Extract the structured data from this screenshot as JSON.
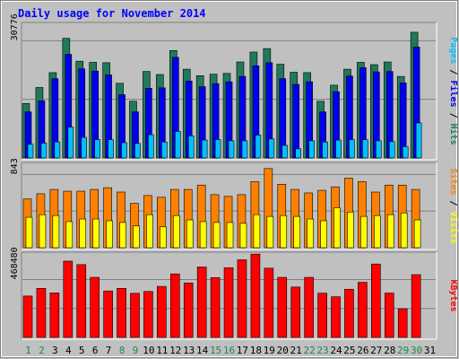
{
  "chart_data": {
    "type": "bar",
    "title": "Daily usage for November 2014",
    "colors": {
      "background": "#c0c0c0",
      "title": "#0000ff",
      "hits": "#1f7a5a",
      "files": "#0000ee",
      "pages": "#00c0ff",
      "visits": "#ffff00",
      "sites": "#ff8000",
      "kbytes": "#ff0000",
      "weekday_label": "#000000",
      "weekend_label": "#1a8a4a"
    },
    "days": [
      "1",
      "2",
      "3",
      "4",
      "5",
      "6",
      "7",
      "8",
      "9",
      "10",
      "11",
      "12",
      "13",
      "14",
      "15",
      "16",
      "17",
      "18",
      "19",
      "20",
      "21",
      "22",
      "23",
      "24",
      "25",
      "26",
      "27",
      "28",
      "29",
      "30",
      "31"
    ],
    "weekend_days": [
      "1",
      "2",
      "8",
      "9",
      "15",
      "16",
      "22",
      "23",
      "29",
      "30"
    ],
    "panels": [
      {
        "id": "hits",
        "ylabel_parts": [
          {
            "text": "Pages",
            "color": "#00c0ff"
          },
          {
            "text": " / ",
            "color": "#000000"
          },
          {
            "text": "Files",
            "color": "#0000ee"
          },
          {
            "text": " / ",
            "color": "#000000"
          },
          {
            "text": "Hits",
            "color": "#1f7a5a"
          }
        ],
        "ytick_label": "30776",
        "ytick_value": 30776,
        "ymax": 35100,
        "series": [
          {
            "name": "Hits",
            "color": "#1f7a5a",
            "values": [
              14300,
              18500,
              22400,
              31400,
              25400,
              25100,
              25000,
              19600,
              14900,
              22700,
              21900,
              28200,
              23300,
              21600,
              22000,
              22200,
              25200,
              27800,
              28700,
              24600,
              22500,
              22400,
              14900,
              19100,
              23300,
              25100,
              24500,
              25200,
              21400,
              33000,
              null
            ]
          },
          {
            "name": "Files",
            "color": "#0000ee",
            "values": [
              12100,
              15000,
              20800,
              27200,
              23400,
              22800,
              21800,
              16600,
              12100,
              18300,
              18400,
              26400,
              20200,
              18700,
              19500,
              20000,
              21400,
              24200,
              25000,
              20800,
              19300,
              20000,
              12100,
              17400,
              21500,
              23700,
              22600,
              22700,
              19700,
              29100,
              null
            ]
          },
          {
            "name": "Pages",
            "color": "#00c0ff",
            "values": [
              3600,
              3900,
              4200,
              8100,
              5400,
              4800,
              4800,
              4000,
              3800,
              6100,
              4200,
              7000,
              5800,
              4700,
              4800,
              4500,
              4500,
              6000,
              5000,
              3300,
              2400,
              4500,
              4200,
              4700,
              4800,
              4800,
              4500,
              4300,
              3000,
              9200,
              null
            ]
          }
        ]
      },
      {
        "id": "visits",
        "ylabel_parts": [
          {
            "text": "Sites",
            "color": "#ff8000"
          },
          {
            "text": " / ",
            "color": "#000000"
          },
          {
            "text": "Visits",
            "color": "#ffff00"
          }
        ],
        "ytick_label": "843",
        "ytick_value": 843,
        "ymax": 960,
        "series": [
          {
            "name": "Sites",
            "color": "#ff8000",
            "values": [
              560,
              620,
              670,
              650,
              650,
              670,
              690,
              640,
              510,
              600,
              580,
              670,
              670,
              720,
              610,
              590,
              610,
              760,
              910,
              730,
              670,
              630,
              660,
              700,
              800,
              760,
              640,
              720,
              720,
              670,
              null
            ]
          },
          {
            "name": "Visits",
            "color": "#ffff00",
            "values": [
              350,
              380,
              370,
              300,
              330,
              330,
              310,
              290,
              250,
              380,
              240,
              370,
              320,
              300,
              290,
              290,
              280,
              380,
              360,
              370,
              360,
              330,
              310,
              460,
              410,
              360,
              370,
              380,
              400,
              320,
              null
            ]
          }
        ]
      },
      {
        "id": "kbytes",
        "ylabel_parts": [
          {
            "text": "KBytes",
            "color": "#ff0000"
          }
        ],
        "ytick_label": "468480",
        "ytick_value": 468480,
        "ymax": 675000,
        "series": [
          {
            "name": "KBytes",
            "color": "#ff0000",
            "values": [
              335000,
              397000,
              360000,
              617000,
              589000,
              486000,
              376000,
              397000,
              357000,
              372000,
              413000,
              514000,
              441000,
              570000,
              484000,
              564000,
              628000,
              674000,
              560000,
              486000,
              408000,
              486000,
              358000,
              329000,
              390000,
              446000,
              594000,
              359000,
              232000,
              508000,
              null
            ]
          }
        ]
      }
    ]
  }
}
